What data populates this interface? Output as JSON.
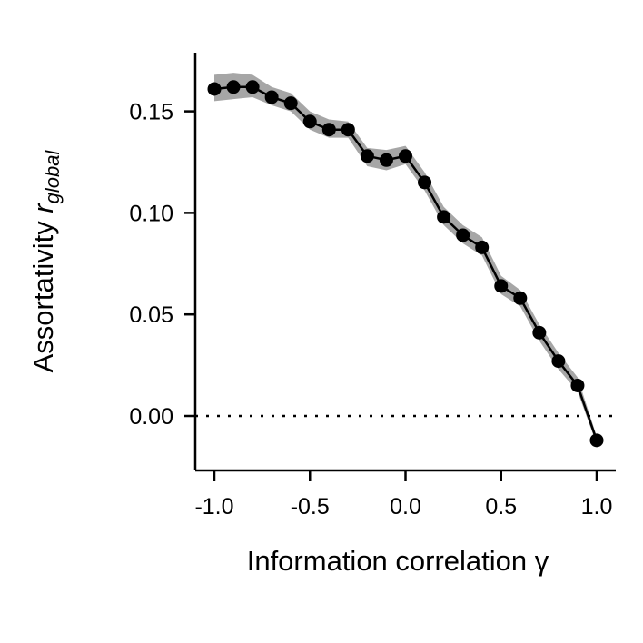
{
  "chart_data": {
    "type": "line",
    "xlabel": "Information correlation",
    "xlabel_symbol": "γ",
    "ylabel": "Assortativity",
    "ylabel_symbol": "r",
    "ylabel_subscript": "global",
    "xlim": [
      -1.1,
      1.1
    ],
    "ylim": [
      -0.027,
      0.18
    ],
    "x_ticks": [
      -1.0,
      -0.5,
      0.0,
      0.5,
      1.0
    ],
    "x_tick_labels": [
      "-1.0",
      "-0.5",
      "0.0",
      "0.5",
      "1.0"
    ],
    "y_ticks": [
      0.0,
      0.05,
      0.1,
      0.15
    ],
    "y_tick_labels": [
      "0.00",
      "0.05",
      "0.10",
      "0.15"
    ],
    "reference_line": {
      "y": 0.0,
      "style": "dotted"
    },
    "grid": false,
    "series": [
      {
        "x": [
          -1.0,
          -0.9,
          -0.8,
          -0.7,
          -0.6,
          -0.5,
          -0.4,
          -0.3,
          -0.2,
          -0.1,
          0.0,
          0.1,
          0.2,
          0.3,
          0.4,
          0.5,
          0.6,
          0.7,
          0.8,
          0.9,
          1.0
        ],
        "y": [
          0.161,
          0.162,
          0.162,
          0.157,
          0.154,
          0.145,
          0.141,
          0.141,
          0.128,
          0.126,
          0.128,
          0.115,
          0.098,
          0.089,
          0.083,
          0.064,
          0.058,
          0.041,
          0.027,
          0.015,
          -0.012
        ],
        "band_low": [
          0.155,
          0.156,
          0.157,
          0.153,
          0.15,
          0.141,
          0.137,
          0.137,
          0.123,
          0.121,
          0.124,
          0.111,
          0.094,
          0.085,
          0.079,
          0.06,
          0.054,
          0.037,
          0.023,
          0.012,
          -0.014
        ],
        "band_high": [
          0.168,
          0.169,
          0.168,
          0.162,
          0.159,
          0.15,
          0.146,
          0.145,
          0.132,
          0.131,
          0.133,
          0.12,
          0.103,
          0.094,
          0.088,
          0.069,
          0.062,
          0.045,
          0.031,
          0.019,
          -0.01
        ],
        "line_color": "#000000",
        "band_color": "#a6a6a6"
      }
    ]
  }
}
